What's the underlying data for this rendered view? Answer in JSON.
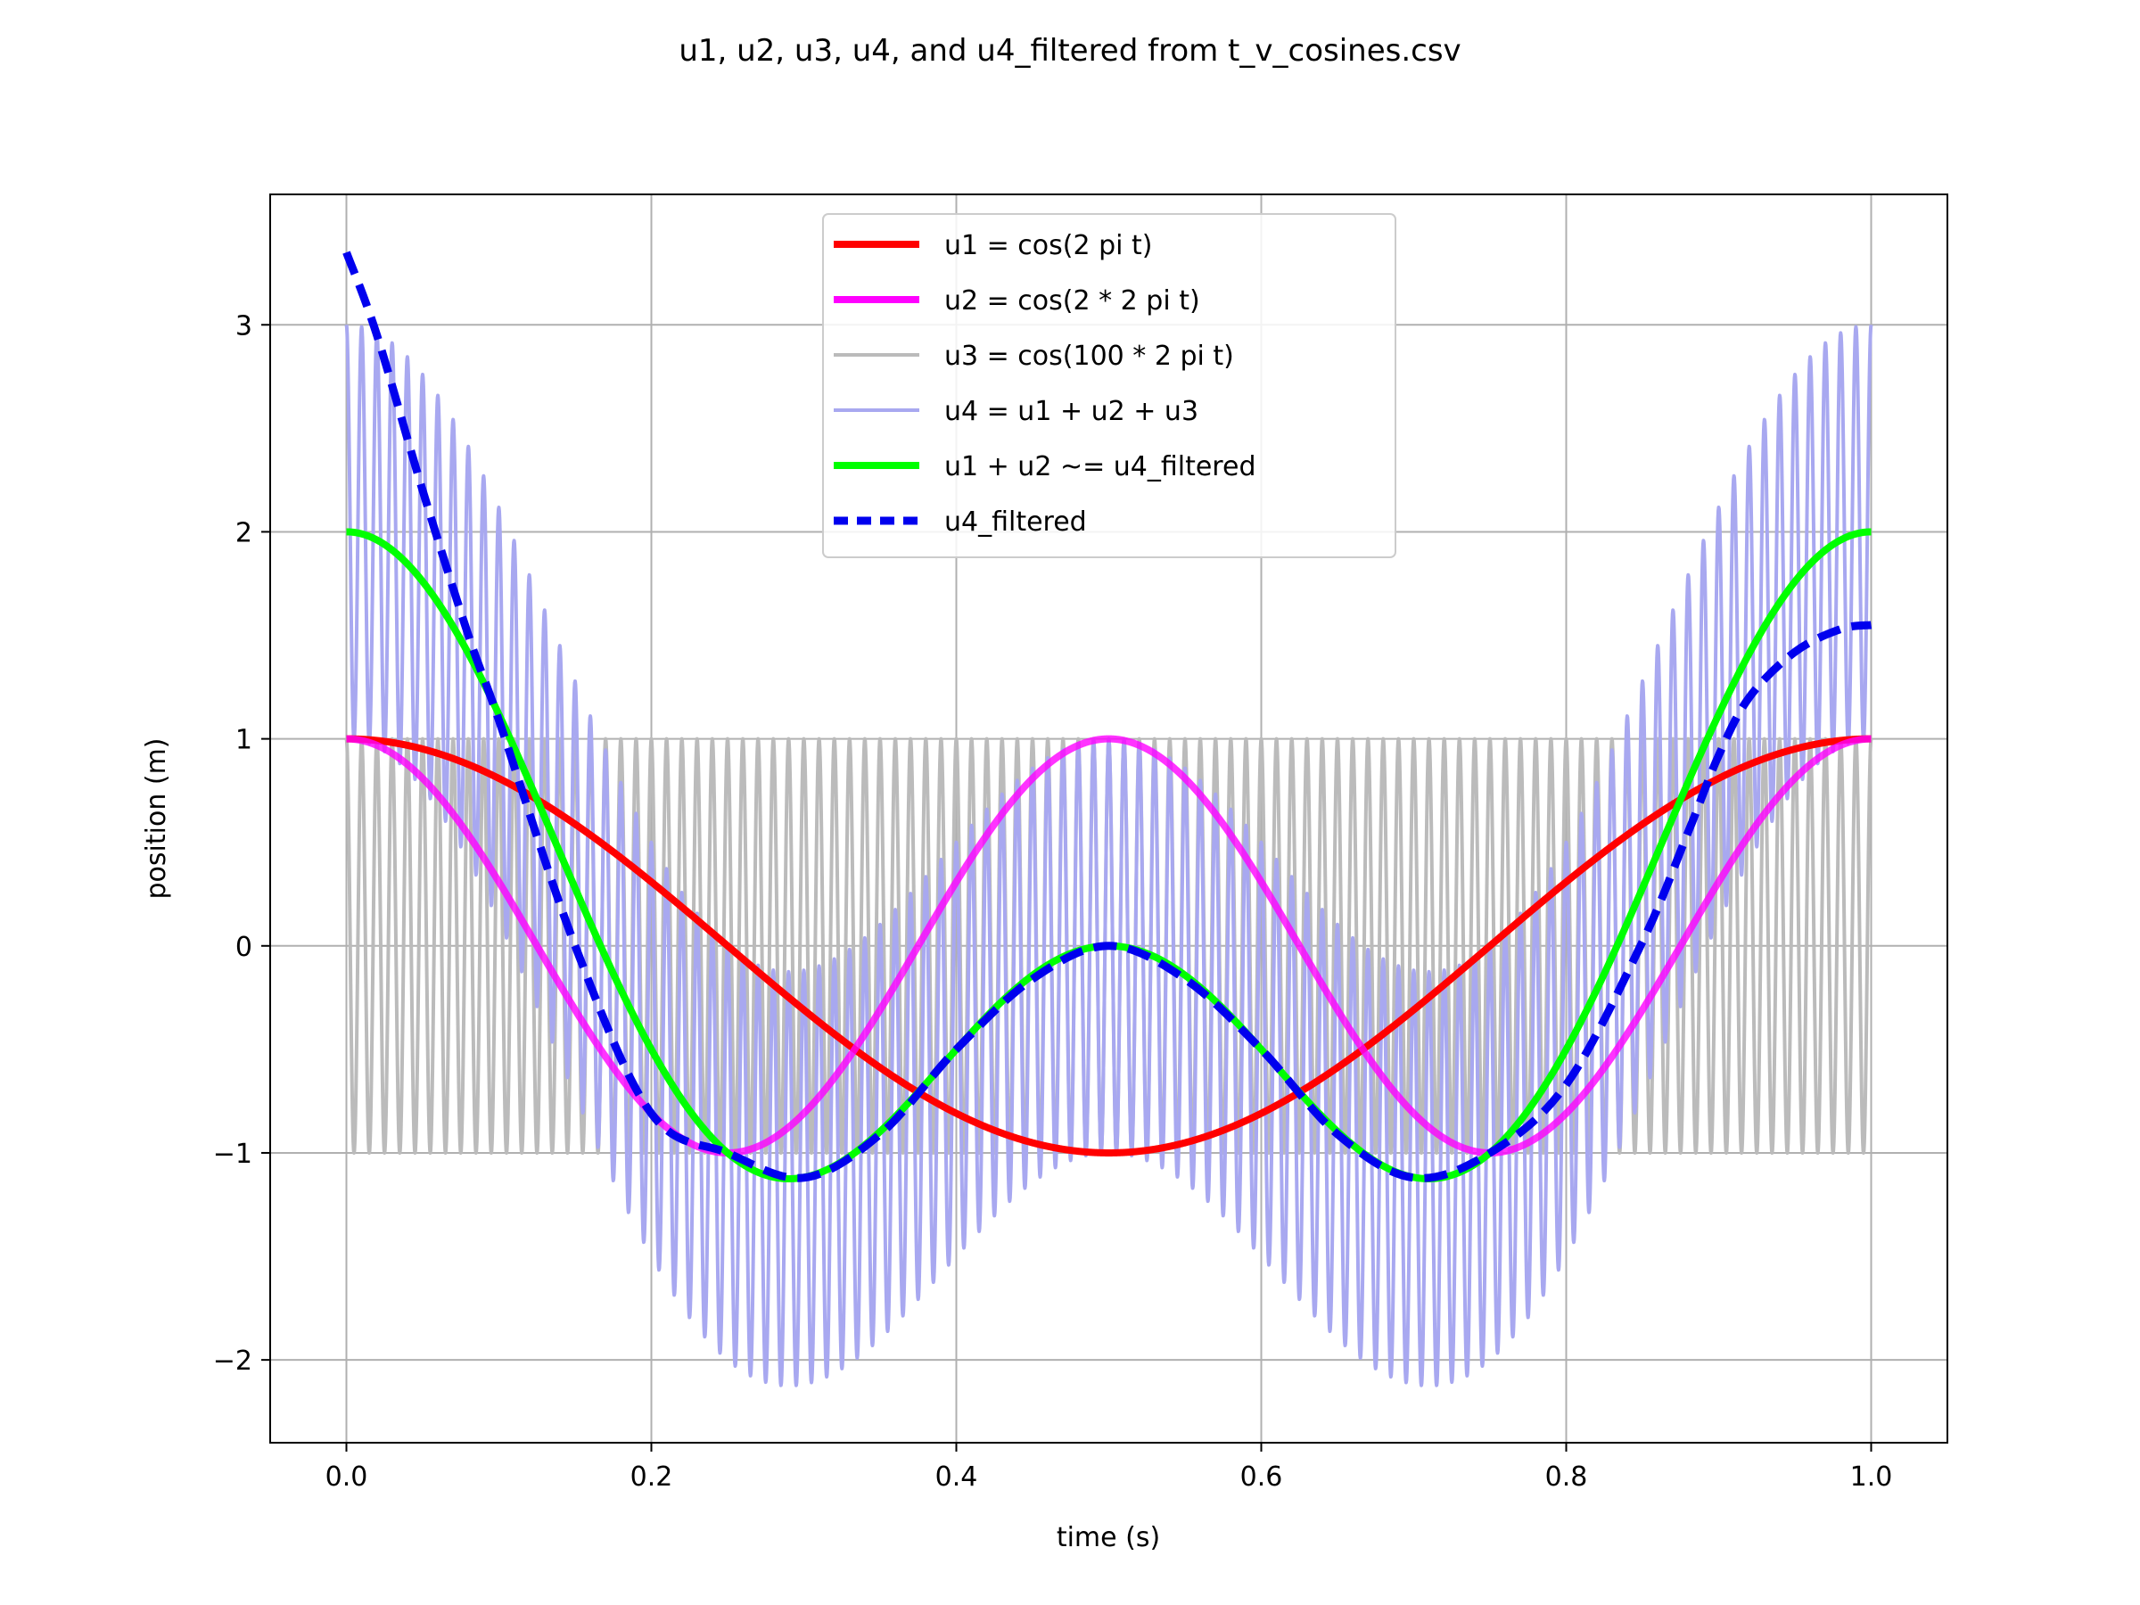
{
  "chart_data": {
    "type": "line",
    "title": "u1, u2, u3, u4, and u4_filtered from t_v_cosines.csv",
    "xlabel": "time (s)",
    "ylabel": "position (m)",
    "xlim": [
      -0.05,
      1.05
    ],
    "ylim": [
      -2.4,
      3.63
    ],
    "xticks": [
      0.0,
      0.2,
      0.4,
      0.6,
      0.8,
      1.0
    ],
    "xtick_labels": [
      "0.0",
      "0.2",
      "0.4",
      "0.6",
      "0.8",
      "1.0"
    ],
    "yticks": [
      -2,
      -1,
      0,
      1,
      2,
      3
    ],
    "ytick_labels": [
      "−2",
      "−1",
      "0",
      "1",
      "2",
      "3"
    ],
    "grid": true,
    "legend_position": "top-center",
    "series": [
      {
        "key": "u3",
        "name": "u3 = cos(100 * 2 pi t)",
        "color": "#bbbbbb",
        "style": "solid",
        "formula": "cos(100*2*pi*t)",
        "x_range": [
          0,
          1
        ]
      },
      {
        "key": "u4",
        "name": "u4 = u1 + u2 + u3",
        "color": "#a8a8f0",
        "style": "solid",
        "formula": "cos(2*pi*t)+cos(4*pi*t)+cos(200*pi*t)",
        "x_range": [
          0,
          1
        ]
      },
      {
        "key": "u1",
        "name": "u1 = cos(2 pi t)",
        "color": "#ff0000",
        "style": "solid",
        "formula": "cos(2*pi*t)",
        "x_range": [
          0,
          1
        ]
      },
      {
        "key": "u2",
        "name": "u2 = cos(2 * 2 pi t)",
        "color": "#ff00ff",
        "style": "solid",
        "formula": "cos(4*pi*t)",
        "x_range": [
          0,
          1
        ]
      },
      {
        "key": "sum12",
        "name": "u1 + u2 ~= u4_filtered",
        "color": "#00ff00",
        "style": "solid",
        "formula": "cos(2*pi*t)+cos(4*pi*t)",
        "x_range": [
          0,
          1
        ]
      },
      {
        "key": "filtered",
        "name": "u4_filtered",
        "color": "#0000ee",
        "style": "dashed",
        "x": [
          0.0,
          0.02,
          0.05,
          0.08,
          0.1,
          0.15,
          0.2,
          0.25,
          0.3,
          0.35,
          0.4,
          0.45,
          0.5,
          0.55,
          0.6,
          0.65,
          0.7,
          0.75,
          0.8,
          0.85,
          0.88,
          0.9,
          0.92,
          0.95,
          0.98,
          1.0
        ],
        "values": [
          3.35,
          2.95,
          2.2,
          1.5,
          1.09,
          0.0,
          -0.81,
          -1.0,
          -1.12,
          -0.91,
          -0.5,
          -0.16,
          0.0,
          -0.16,
          -0.5,
          -0.91,
          -1.12,
          -1.0,
          -0.67,
          0.02,
          0.55,
          0.92,
          1.2,
          1.42,
          1.53,
          1.55
        ]
      }
    ]
  }
}
